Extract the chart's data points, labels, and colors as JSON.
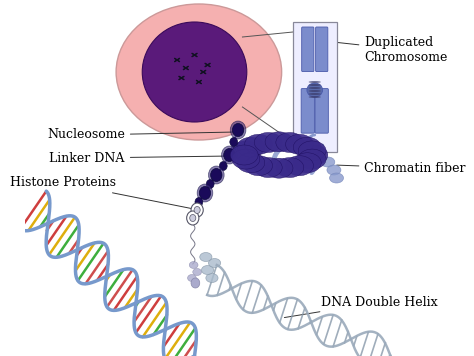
{
  "bg_color": "#ffffff",
  "labels": {
    "duplicated_chromosome": "Duplicated\nChromosome",
    "nucleosome": "Nucleosome",
    "linker_dna": "Linker DNA",
    "histone_proteins": "Histone Proteins",
    "chromatin_fiber": "Chromatin fiber",
    "dna_double_helix": "DNA Double Helix"
  },
  "colors": {
    "cell_outer": "#f5b0b0",
    "cell_inner": "#5a1a7a",
    "cell_inner_edge": "#3a0a5a",
    "chromosome_fill": "#7b8ccc",
    "chromosome_edge": "#4a5aaa",
    "chromosome_centromere": "#5a6aaa",
    "box_face": "#eeeeff",
    "box_edge": "#888899",
    "chromatin_coil": "#3a2a8a",
    "chromatin_coil_edge": "#1a0a5a",
    "chromatin_fiber_tail": "#8899cc",
    "nucleosome_bead": "#1a0a5a",
    "nucleosome_ring": "#3a2a7a",
    "linker_color": "#8899bb",
    "dna_strand_color": "#7799cc",
    "dna_rung_a": "#cc3333",
    "dna_rung_b": "#ddaa00",
    "dna_rung_c": "#33aa33",
    "dna_rung_d": "#cc4444",
    "gray_helix": "#9aaabb",
    "text_color": "#000000",
    "line_color": "#333333"
  }
}
